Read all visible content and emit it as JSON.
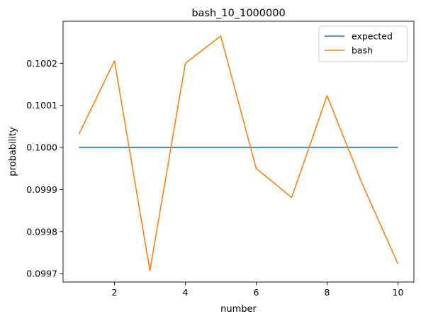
{
  "chart_data": {
    "type": "line",
    "title": "bash_10_1000000",
    "xlabel": "number",
    "ylabel": "probability",
    "x": [
      1,
      2,
      3,
      4,
      5,
      6,
      7,
      8,
      9,
      10
    ],
    "series": [
      {
        "name": "expected",
        "color": "#1f77b4",
        "values": [
          0.1,
          0.1,
          0.1,
          0.1,
          0.1,
          0.1,
          0.1,
          0.1,
          0.1,
          0.1
        ]
      },
      {
        "name": "bash",
        "color": "#ff7f0e",
        "values": [
          0.100032,
          0.100206,
          0.099707,
          0.1002,
          0.100265,
          0.09995,
          0.099881,
          0.100123,
          0.099912,
          0.099723
        ]
      }
    ],
    "xlim": [
      0.55,
      10.45
    ],
    "ylim": [
      0.09968,
      0.1003
    ],
    "xticks": [
      2,
      4,
      6,
      8,
      10
    ],
    "xtick_labels": [
      "2",
      "4",
      "6",
      "8",
      "10"
    ],
    "yticks": [
      0.0997,
      0.0998,
      0.0999,
      0.1,
      0.1001,
      0.1002
    ],
    "ytick_labels": [
      "0.0997",
      "0.0998",
      "0.0999",
      "0.1000",
      "0.1001",
      "0.1002"
    ],
    "grid": false,
    "legend_position": "top-right"
  }
}
